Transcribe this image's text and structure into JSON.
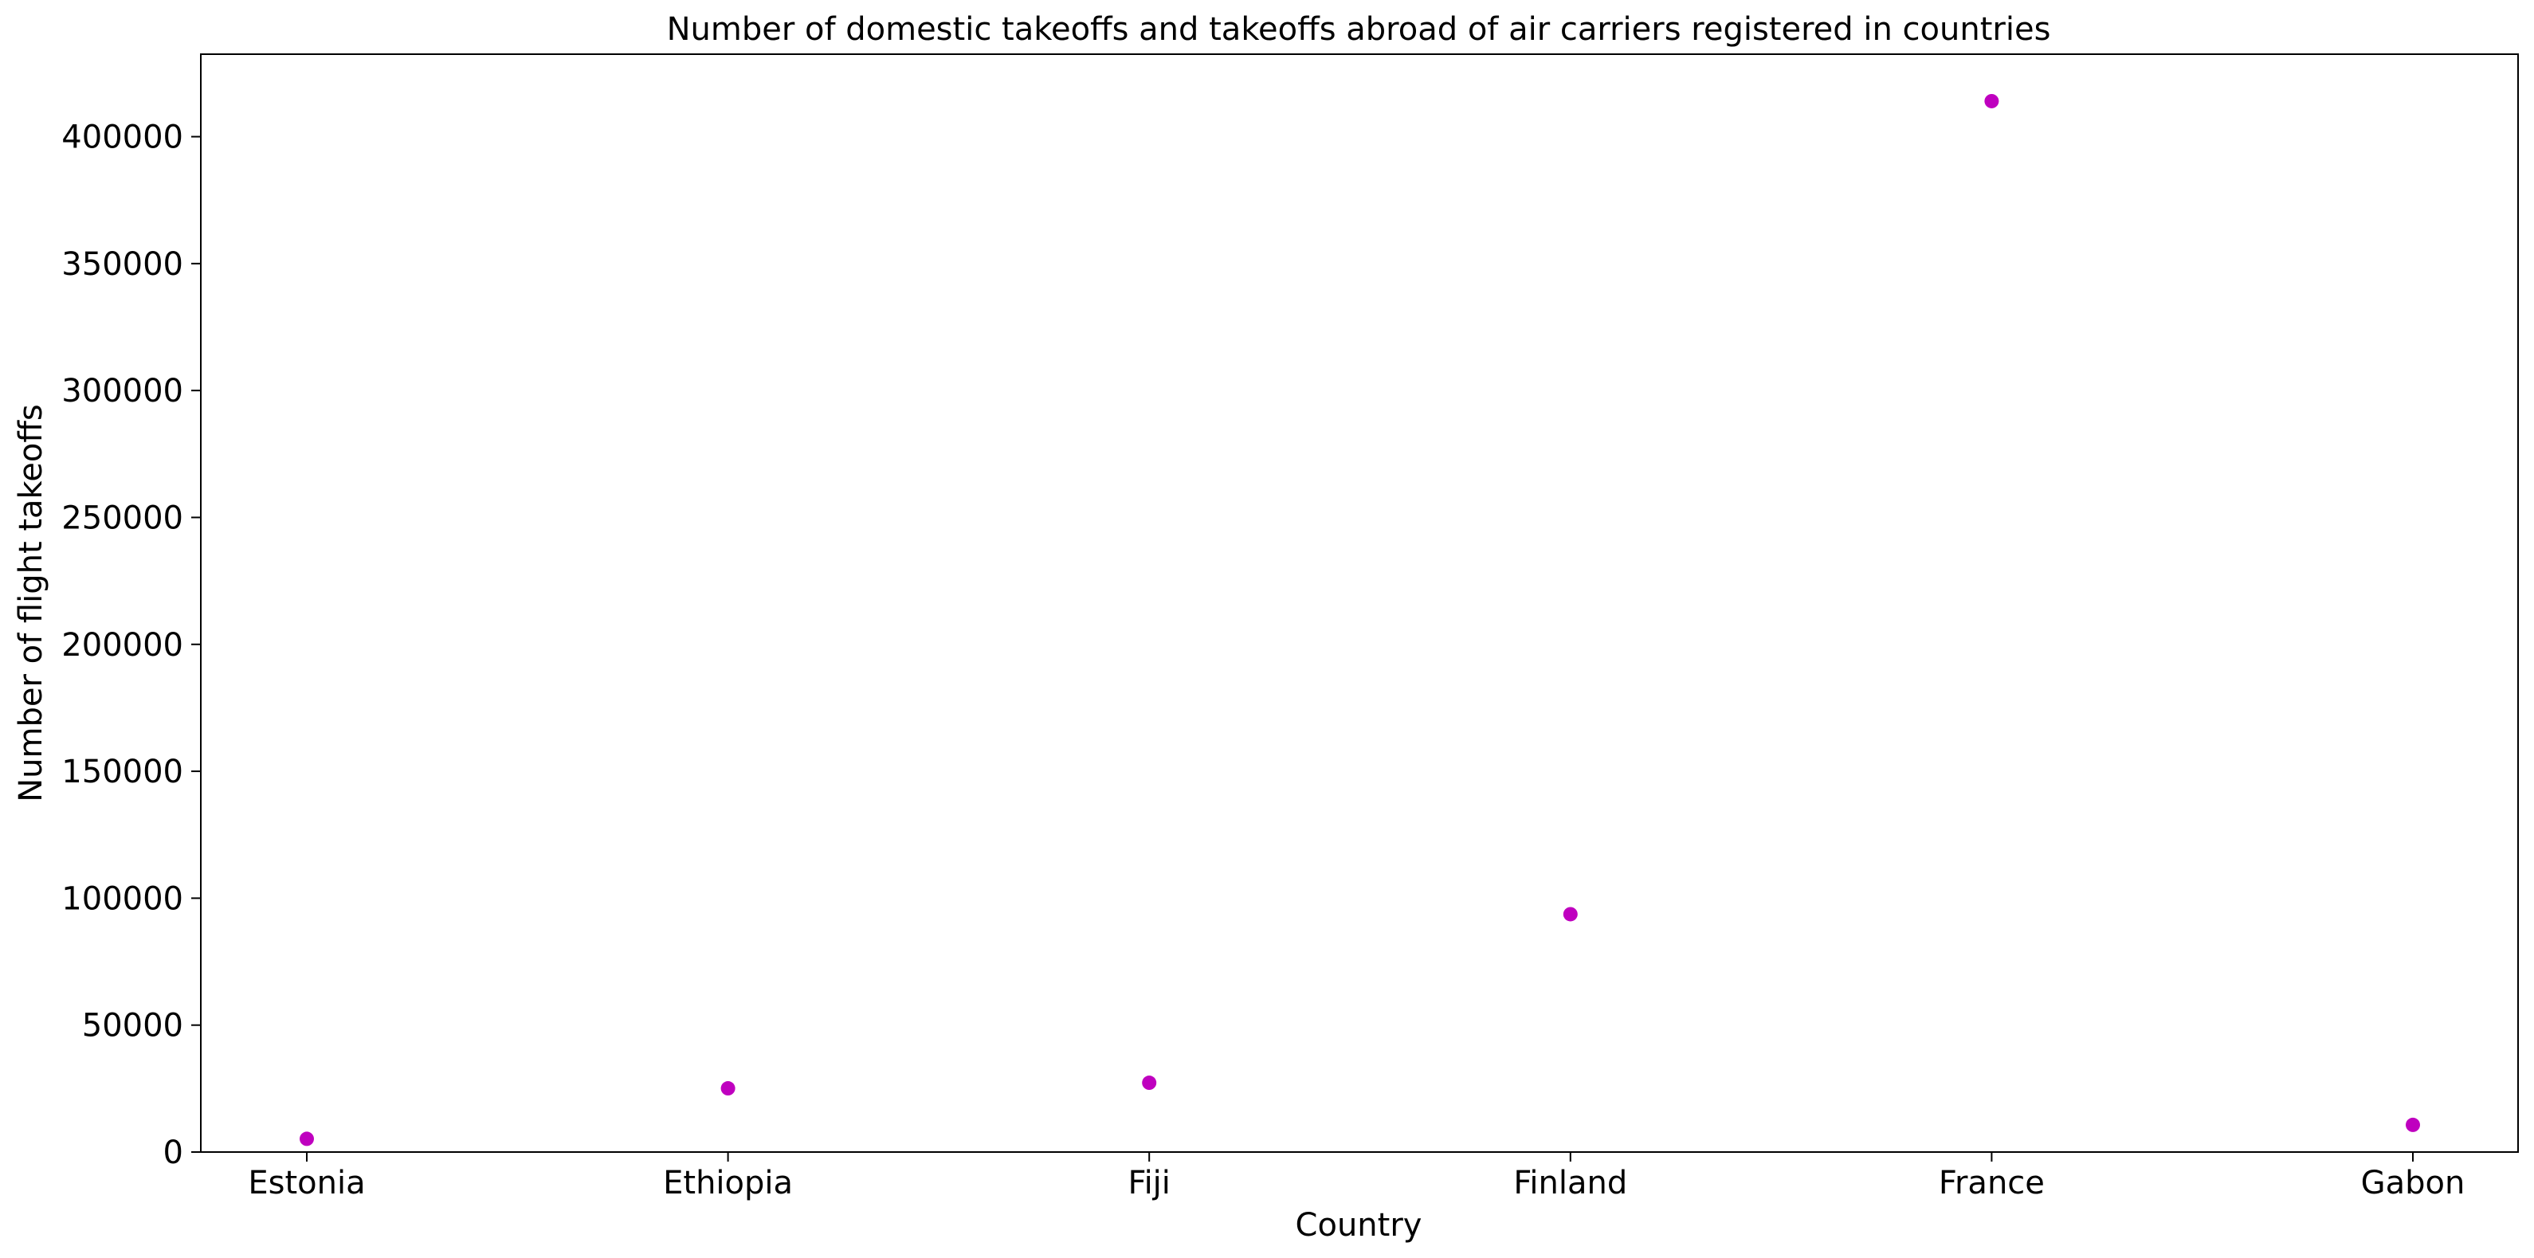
{
  "chart_data": {
    "type": "scatter",
    "title": "Number of domestic takeoffs and takeoffs abroad of air carriers registered in countries",
    "xlabel": "Country",
    "ylabel": "Number of flight takeoffs",
    "categories": [
      "Estonia",
      "Ethiopia",
      "Fiji",
      "Finland",
      "France",
      "Gabon"
    ],
    "series": [
      {
        "values": [
          5200,
          25100,
          27300,
          93700,
          414000,
          10700
        ]
      }
    ],
    "ylim": [
      0,
      432500
    ],
    "yticks": [
      0,
      50000,
      100000,
      150000,
      200000,
      250000,
      300000,
      350000,
      400000
    ],
    "ytick_labels": [
      "0",
      "50000",
      "100000",
      "150000",
      "200000",
      "250000",
      "300000",
      "350000",
      "400000"
    ],
    "grid": false,
    "legend": "none",
    "marker_color": "#bf00bf"
  }
}
